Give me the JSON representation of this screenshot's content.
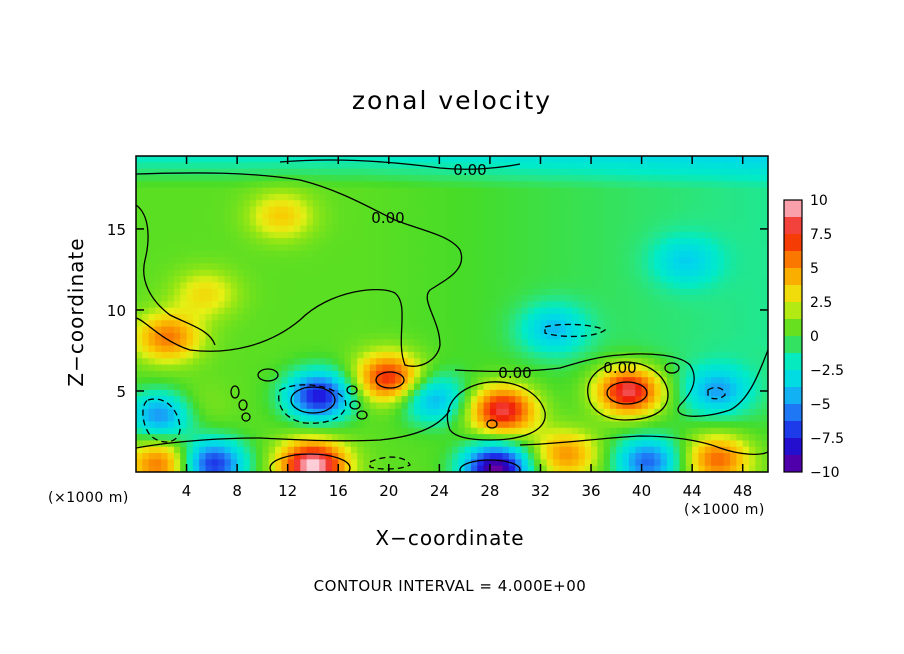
{
  "chart_data": {
    "type": "heatmap",
    "title": "zonal velocity",
    "xlabel": "X−coordinate",
    "ylabel": "Z−coordinate",
    "x_unit": "(×1000 m)",
    "y_unit": "(×1000 m)",
    "xlim": [
      0,
      50
    ],
    "ylim": [
      0,
      19.5
    ],
    "x_ticks": [
      4,
      8,
      12,
      16,
      20,
      24,
      28,
      32,
      36,
      40,
      44,
      48
    ],
    "y_ticks": [
      5,
      10,
      15
    ],
    "colorbar": {
      "ticks": [
        "10",
        "7.5",
        "5",
        "2.5",
        "0",
        "−2.5",
        "−5",
        "−7.5",
        "−10"
      ],
      "range": [
        -10,
        10
      ]
    },
    "contour_labels": [
      "0.00",
      "0.00",
      "0.00",
      "0.00"
    ],
    "footer": "CONTOUR INTERVAL = 4.000E+00",
    "features": [
      {
        "x": 2.5,
        "z": 8.3,
        "value": 5.5
      },
      {
        "x": 4.5,
        "z": 4.0,
        "value": 1.5
      },
      {
        "x": 2.0,
        "z": 3.5,
        "value": -5.5
      },
      {
        "x": 11.5,
        "z": 15.8,
        "value": 3.5
      },
      {
        "x": 5.5,
        "z": 11.0,
        "value": 3.0
      },
      {
        "x": 14.5,
        "z": 4.7,
        "value": -8.0
      },
      {
        "x": 20.0,
        "z": 5.8,
        "value": 7.5
      },
      {
        "x": 23.5,
        "z": 4.5,
        "value": -4.5
      },
      {
        "x": 29.0,
        "z": 3.8,
        "value": 8.5
      },
      {
        "x": 39.0,
        "z": 5.0,
        "value": 9.0
      },
      {
        "x": 14.0,
        "z": 0.4,
        "value": 10.0
      },
      {
        "x": 28.5,
        "z": 0.2,
        "value": -10.0
      },
      {
        "x": 6.0,
        "z": 0.5,
        "value": -7.5
      },
      {
        "x": 2.0,
        "z": 0.5,
        "value": 6.0
      },
      {
        "x": 46.0,
        "z": 0.8,
        "value": 6.0
      },
      {
        "x": 34.0,
        "z": 1.1,
        "value": 5.0
      },
      {
        "x": 40.5,
        "z": 0.6,
        "value": -6.0
      },
      {
        "x": 33.0,
        "z": 8.8,
        "value": -3.5
      },
      {
        "x": 43.5,
        "z": 13.0,
        "value": -2.5
      },
      {
        "x": 46.0,
        "z": 5.0,
        "value": -4.0
      }
    ]
  }
}
